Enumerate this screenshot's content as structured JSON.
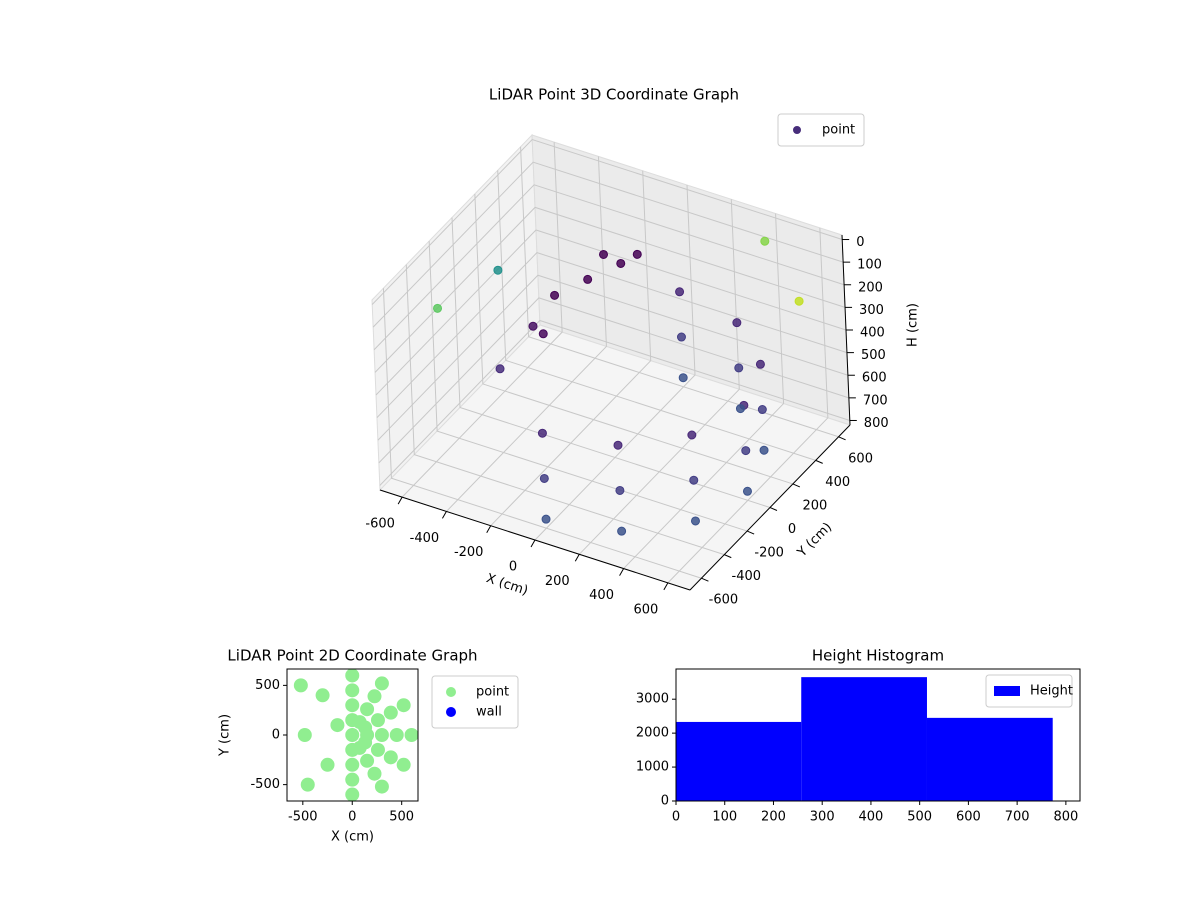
{
  "chart_data": [
    {
      "type": "scatter3d",
      "title": "LiDAR Point 3D Coordinate Graph",
      "x_label": "X (cm)",
      "y_label": "Y (cm)",
      "z_label": "H (cm)",
      "xlim": [
        -700,
        700
      ],
      "ylim": [
        -700,
        700
      ],
      "zlim": [
        820,
        -20
      ],
      "xticks": [
        -600,
        -400,
        -200,
        0,
        200,
        400,
        600
      ],
      "yticks": [
        -600,
        -400,
        -200,
        0,
        200,
        400,
        600
      ],
      "zticks": [
        0,
        100,
        200,
        300,
        400,
        500,
        600,
        700,
        800
      ],
      "grid": true,
      "legend": "upper right",
      "series": [
        {
          "name": "point",
          "color": "#472d7b",
          "x": [
            0,
            0,
            0,
            300,
            300,
            300,
            520,
            520,
            520,
            600,
            600,
            600,
            520,
            520,
            520,
            300,
            300,
            300,
            0,
            0,
            0,
            -300,
            -200,
            -100,
            -250,
            -350,
            -150,
            -50,
            -400,
            -620,
            -500,
            400,
            600
          ],
          "y": [
            -600,
            -600,
            -600,
            -520,
            -520,
            -520,
            -300,
            -300,
            -300,
            0,
            0,
            0,
            300,
            300,
            300,
            520,
            520,
            520,
            600,
            600,
            600,
            100,
            200,
            300,
            -100,
            0,
            250,
            350,
            -200,
            -300,
            0,
            600,
            500
          ],
          "z": [
            400,
            600,
            780,
            400,
            600,
            780,
            400,
            600,
            780,
            400,
            600,
            780,
            400,
            600,
            780,
            400,
            600,
            780,
            400,
            600,
            780,
            250,
            200,
            150,
            300,
            350,
            100,
            120,
            450,
            200,
            150,
            50,
            200
          ],
          "colors": [
            "#482878",
            "#433e85",
            "#3b528b",
            "#482878",
            "#433e85",
            "#3b528b",
            "#482878",
            "#433e85",
            "#3b528b",
            "#482878",
            "#433e85",
            "#3b528b",
            "#482878",
            "#433e85",
            "#3b528b",
            "#482878",
            "#433e85",
            "#3b528b",
            "#482878",
            "#433e85",
            "#3b528b",
            "#440154",
            "#440154",
            "#440154",
            "#46085c",
            "#471063",
            "#440154",
            "#440154",
            "#472d7b",
            "#5ec962",
            "#21918c",
            "#86d549",
            "#c2df23"
          ]
        }
      ]
    },
    {
      "type": "scatter",
      "title": "LiDAR Point 2D Coordinate Graph",
      "x_label": "X (cm)",
      "y_label": "Y (cm)",
      "xlim": [
        -660,
        665
      ],
      "ylim": [
        -665,
        665
      ],
      "xticks": [
        -500,
        0,
        500
      ],
      "yticks": [
        -500,
        0,
        500
      ],
      "legend": "outside right",
      "series": [
        {
          "name": "point",
          "color": "#90ee90",
          "x": [
            0,
            300,
            520,
            600,
            520,
            300,
            0,
            0,
            225,
            390,
            450,
            390,
            225,
            0,
            0,
            150,
            260,
            300,
            260,
            150,
            0,
            0,
            75,
            130,
            150,
            130,
            75,
            0,
            0,
            -520,
            -480,
            -450,
            -300,
            -250,
            -150
          ],
          "y": [
            -600,
            -520,
            -300,
            0,
            300,
            520,
            600,
            -450,
            -390,
            -225,
            0,
            225,
            390,
            450,
            -300,
            -260,
            -150,
            0,
            150,
            260,
            300,
            -150,
            -130,
            -75,
            0,
            75,
            130,
            150,
            0,
            500,
            0,
            -500,
            400,
            -300,
            100
          ]
        },
        {
          "name": "wall",
          "color": "#0000ff",
          "x": [],
          "y": []
        }
      ]
    },
    {
      "type": "histogram",
      "title": "Height Histogram",
      "bins": [
        0,
        257,
        515,
        773
      ],
      "xlim": [
        0,
        829
      ],
      "ylim": [
        0,
        3890
      ],
      "xticks": [
        0,
        100,
        200,
        300,
        400,
        500,
        600,
        700,
        800
      ],
      "yticks": [
        0,
        1000,
        2000,
        3000
      ],
      "legend": "upper right",
      "series": [
        {
          "name": "Height",
          "color": "#0000ff",
          "values": [
            2330,
            3650,
            2450
          ]
        }
      ]
    }
  ]
}
